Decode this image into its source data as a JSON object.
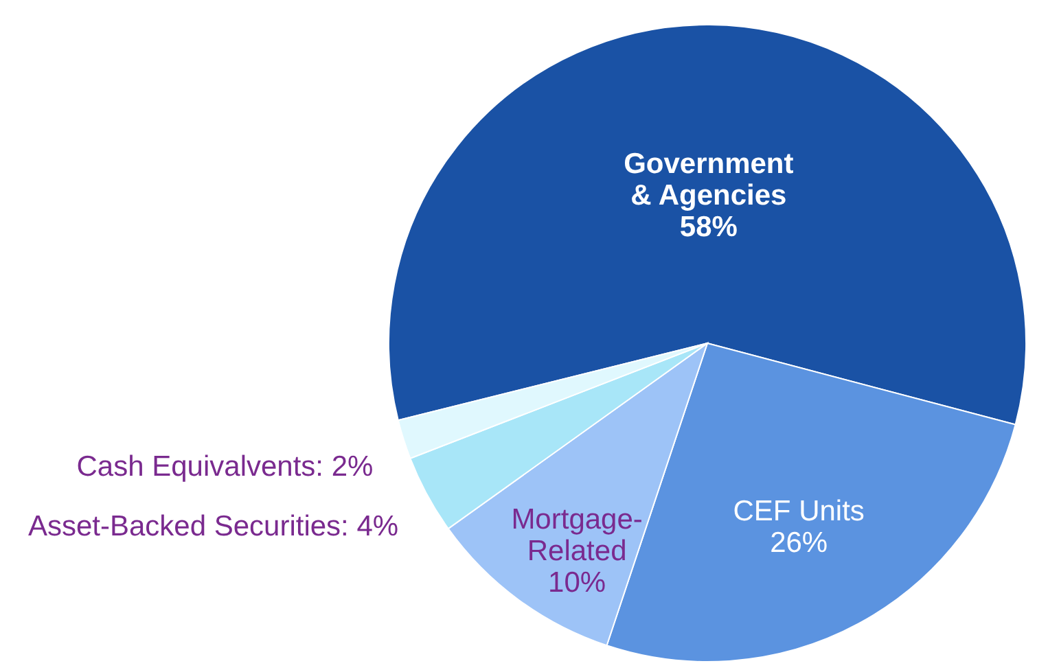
{
  "chart_data": {
    "type": "pie",
    "categories": [
      "Government & Agencies",
      "CEF Units",
      "Mortgage-Related",
      "Asset-Backed Securities",
      "Cash Equivalvents"
    ],
    "values": [
      58,
      26,
      10,
      4,
      2
    ],
    "value_labels": [
      "58%",
      "26%",
      "10%",
      "4%",
      "2%"
    ],
    "colors": [
      "#1a52a5",
      "#5b93e0",
      "#9dc3f7",
      "#a8e6f8",
      "#e0f8fe"
    ]
  }
}
